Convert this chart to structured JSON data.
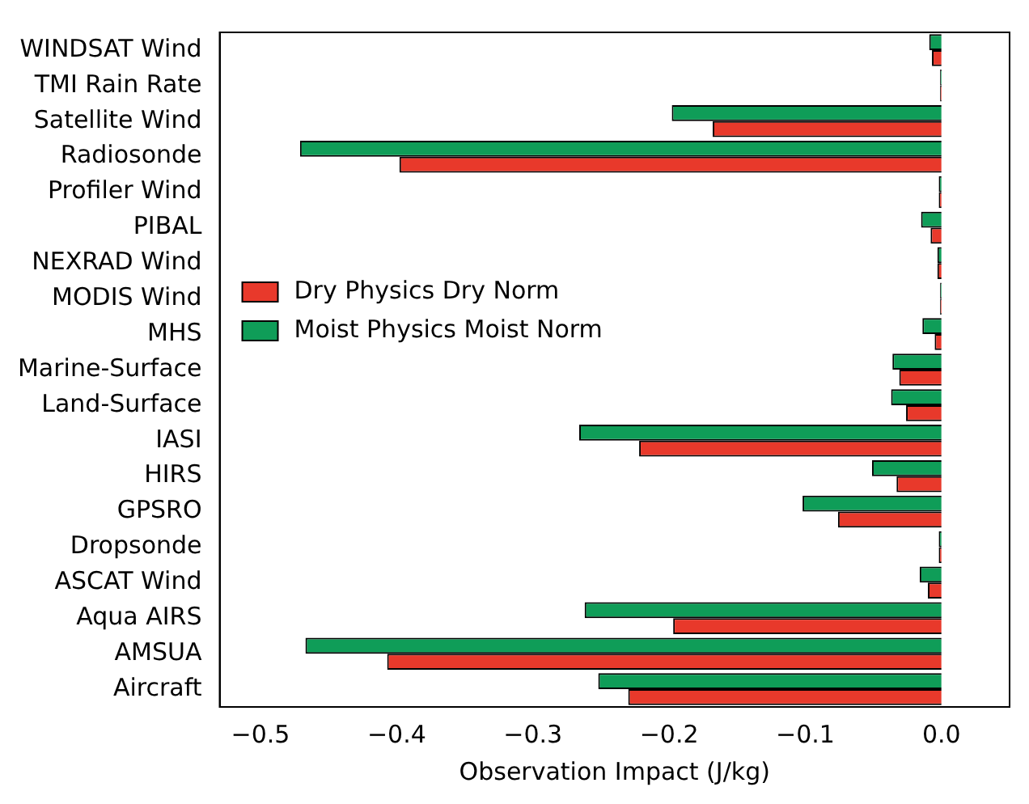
{
  "chart_data": {
    "type": "bar",
    "orientation": "horizontal",
    "xlabel": "Observation Impact (J/kg)",
    "categories": [
      "WINDSAT Wind",
      "TMI Rain Rate",
      "Satellite Wind",
      "Radiosonde",
      "Profiler Wind",
      "PIBAL",
      "NEXRAD Wind",
      "MODIS Wind",
      "MHS",
      "Marine-Surface",
      "Land-Surface",
      "IASI",
      "HIRS",
      "GPSRO",
      "Dropsonde",
      "ASCAT Wind",
      "Aqua AIRS",
      "AMSUA",
      "Aircraft"
    ],
    "series": [
      {
        "name": "Dry Physics Dry Norm",
        "color": "#e8392b",
        "values": [
          -0.007,
          -0.001,
          -0.168,
          -0.398,
          -0.002,
          -0.008,
          -0.003,
          -0.001,
          -0.005,
          -0.031,
          -0.026,
          -0.222,
          -0.033,
          -0.076,
          -0.002,
          -0.01,
          -0.197,
          -0.407,
          -0.23
        ]
      },
      {
        "name": "Moist Physics Moist Norm",
        "color": "#0f9d58",
        "values": [
          -0.009,
          -0.001,
          -0.198,
          -0.471,
          -0.002,
          -0.015,
          -0.003,
          -0.001,
          -0.014,
          -0.036,
          -0.037,
          -0.266,
          -0.051,
          -0.102,
          -0.002,
          -0.016,
          -0.262,
          -0.467,
          -0.252
        ]
      }
    ],
    "xlim": [
      -0.53,
      0.05
    ],
    "xticks": [
      {
        "value": -0.5,
        "label": "−0.5"
      },
      {
        "value": -0.4,
        "label": "−0.4"
      },
      {
        "value": -0.3,
        "label": "−0.3"
      },
      {
        "value": -0.2,
        "label": "−0.2"
      },
      {
        "value": -0.1,
        "label": "−0.1"
      },
      {
        "value": 0,
        "label": "0.0"
      }
    ],
    "grid": false,
    "legend": "center left"
  }
}
